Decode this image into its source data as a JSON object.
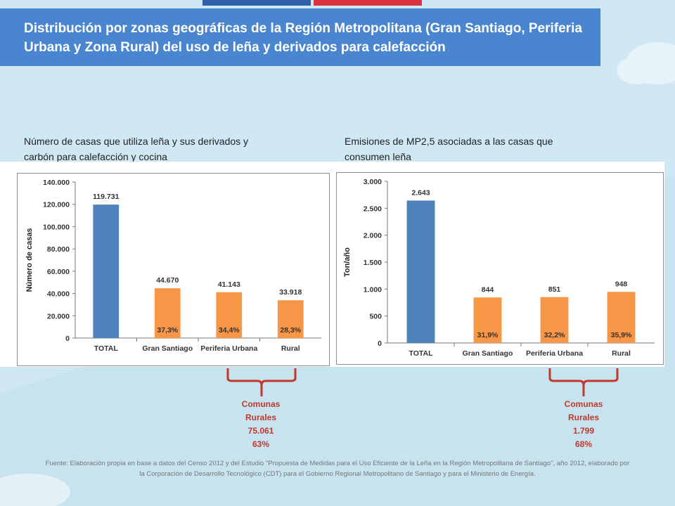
{
  "header": {
    "title": "Distribución por zonas geográficas de la Región Metropolitana (Gran Santiago, Periferia Urbana y Zona Rural) del uso de leña y derivados para calefacción"
  },
  "left_panel": {
    "subtitle": "Número de casas que utiliza leña y sus derivados y carbón para calefacción y cocina",
    "brace": {
      "line1": "Comunas",
      "line2": "Rurales",
      "value": "75.061",
      "percent": "63%"
    }
  },
  "right_panel": {
    "subtitle": "Emisiones de MP2,5 asociadas a las casas que consumen leña",
    "brace": {
      "line1": "Comunas",
      "line2": "Rurales",
      "value": "1.799",
      "percent": "68%"
    }
  },
  "footer": {
    "source": "Fuente: Elaboración propia en base a datos del Censo 2012 y del Estudio \"Propuesta de Medidas para el Uso Eficiente de la Leña en la Región Metropolitana de Santiago\", año 2012, elaborado por la Corporación de Desarrollo Tecnológico (CDT) para el Gobierno Regional Metropolitano de Santiago y para el Ministerio de Energía."
  },
  "colors": {
    "total": "#4f81bd",
    "zone": "#f79646",
    "brace": "#c0392b"
  },
  "chart_data": [
    {
      "type": "bar",
      "title": "Número de casas que utiliza leña y sus derivados y carbón para calefacción y cocina",
      "xlabel": "",
      "ylabel": "Número de casas",
      "categories": [
        "TOTAL",
        "Gran Santiago",
        "Periferia Urbana",
        "Rural"
      ],
      "values": [
        119731,
        44670,
        41143,
        33918
      ],
      "value_labels": [
        "119.731",
        "44.670",
        "41.143",
        "33.918"
      ],
      "percent_labels": [
        "",
        "37,3%",
        "34,4%",
        "28,3%"
      ],
      "ylim": [
        0,
        140000
      ],
      "yticks": [
        0,
        20000,
        40000,
        60000,
        80000,
        100000,
        120000,
        140000
      ],
      "ytick_labels": [
        "0",
        "20.000",
        "40.000",
        "60.000",
        "80.000",
        "100.000",
        "120.000",
        "140.000"
      ]
    },
    {
      "type": "bar",
      "title": "Emisiones de MP2,5 asociadas a las casas que consumen leña",
      "xlabel": "",
      "ylabel": "Ton/año",
      "categories": [
        "TOTAL",
        "Gran Santiago",
        "Periferia Urbana",
        "Rural"
      ],
      "values": [
        2643,
        844,
        851,
        948
      ],
      "value_labels": [
        "2.643",
        "844",
        "851",
        "948"
      ],
      "percent_labels": [
        "",
        "31,9%",
        "32,2%",
        "35,9%"
      ],
      "ylim": [
        0,
        3000
      ],
      "yticks": [
        0,
        500,
        1000,
        1500,
        2000,
        2500,
        3000
      ],
      "ytick_labels": [
        "0",
        "500",
        "1.000",
        "1.500",
        "2.000",
        "2.500",
        "3.000"
      ]
    }
  ]
}
